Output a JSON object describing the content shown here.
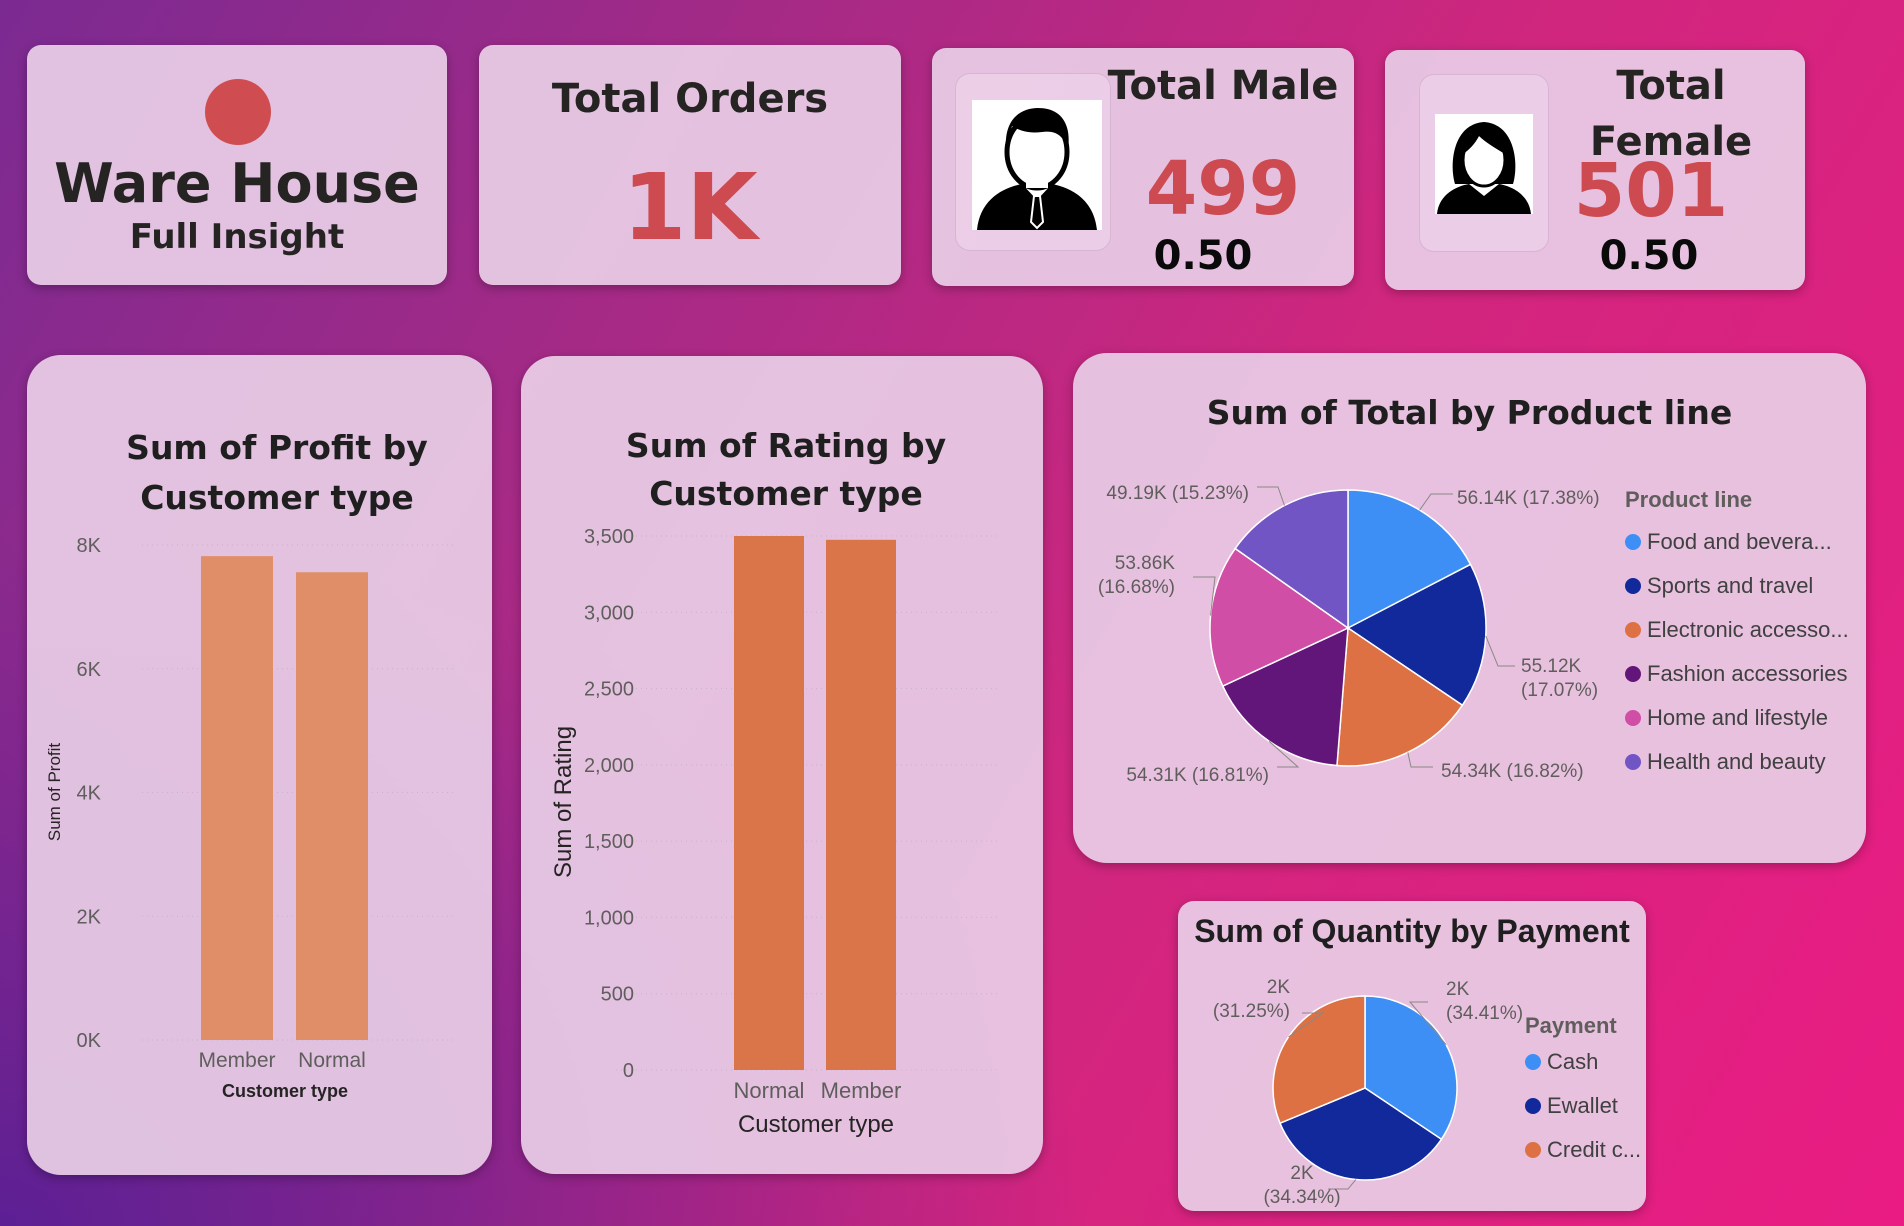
{
  "colors": {
    "kpi_red": "#cc4a50",
    "bar_profit": "#e08e67",
    "bar_rating": "#d97548"
  },
  "warehouse": {
    "title": "Ware House",
    "subtitle": "Full Insight"
  },
  "total_orders": {
    "label": "Total Orders",
    "value": "1K"
  },
  "total_male": {
    "label": "Total Male",
    "value": "499",
    "ratio": "0.50",
    "icon": "male-avatar-icon"
  },
  "total_female": {
    "label": "Total Female",
    "value": "501",
    "ratio": "0.50",
    "icon": "female-avatar-icon"
  },
  "chart_data": [
    {
      "type": "bar",
      "title": "Sum of Profit by Customer type",
      "xlabel": "Customer type",
      "ylabel": "Sum of Profit",
      "categories": [
        "Member",
        "Normal"
      ],
      "values": [
        7820,
        7560
      ],
      "ylim": [
        0,
        8000
      ],
      "yticks": [
        0,
        2000,
        4000,
        6000,
        8000
      ],
      "ytick_labels": [
        "0K",
        "2K",
        "4K",
        "6K",
        "8K"
      ],
      "grid": true
    },
    {
      "type": "bar",
      "title": "Sum of Rating by Customer type",
      "xlabel": "Customer type",
      "ylabel": "Sum of Rating",
      "categories": [
        "Normal",
        "Member"
      ],
      "values": [
        3500,
        3475
      ],
      "ylim": [
        0,
        3500
      ],
      "yticks": [
        0,
        500,
        1000,
        1500,
        2000,
        2500,
        3000,
        3500
      ],
      "ytick_labels": [
        "0",
        "500",
        "1,000",
        "1,500",
        "2,000",
        "2,500",
        "3,000",
        "3,500"
      ],
      "grid": true
    },
    {
      "type": "pie",
      "title": "Sum of Total by Product line",
      "legend_title": "Product line",
      "legend_position": "right",
      "slices": [
        {
          "name": "Food and bevera...",
          "value": 56.14,
          "label": "56.14K (17.38%)",
          "color": "#3e8ff5"
        },
        {
          "name": "Sports and travel",
          "value": 55.12,
          "label": "55.12K (17.07%)",
          "color": "#12299b"
        },
        {
          "name": "Electronic accesso...",
          "value": 54.34,
          "label": "54.34K (16.82%)",
          "color": "#dd7143"
        },
        {
          "name": "Fashion accessories",
          "value": 54.31,
          "label": "54.31K (16.81%)",
          "color": "#63167a"
        },
        {
          "name": "Home and lifestyle",
          "value": 53.86,
          "label": "53.86K (16.68%)",
          "color": "#d04ea5"
        },
        {
          "name": "Health and beauty",
          "value": 49.19,
          "label": "49.19K (15.23%)",
          "color": "#7155c5"
        }
      ]
    },
    {
      "type": "pie",
      "title": "Sum of Quantity by Payment",
      "legend_title": "Payment",
      "legend_position": "right",
      "slices": [
        {
          "name": "Cash",
          "value": 34.41,
          "label": "2K (34.41%)",
          "color": "#3e8ff5"
        },
        {
          "name": "Ewallet",
          "value": 34.34,
          "label": "2K (34.34%)",
          "color": "#12299b"
        },
        {
          "name": "Credit c...",
          "value": 31.25,
          "label": "2K (31.25%)",
          "color": "#dd7143"
        }
      ]
    }
  ]
}
